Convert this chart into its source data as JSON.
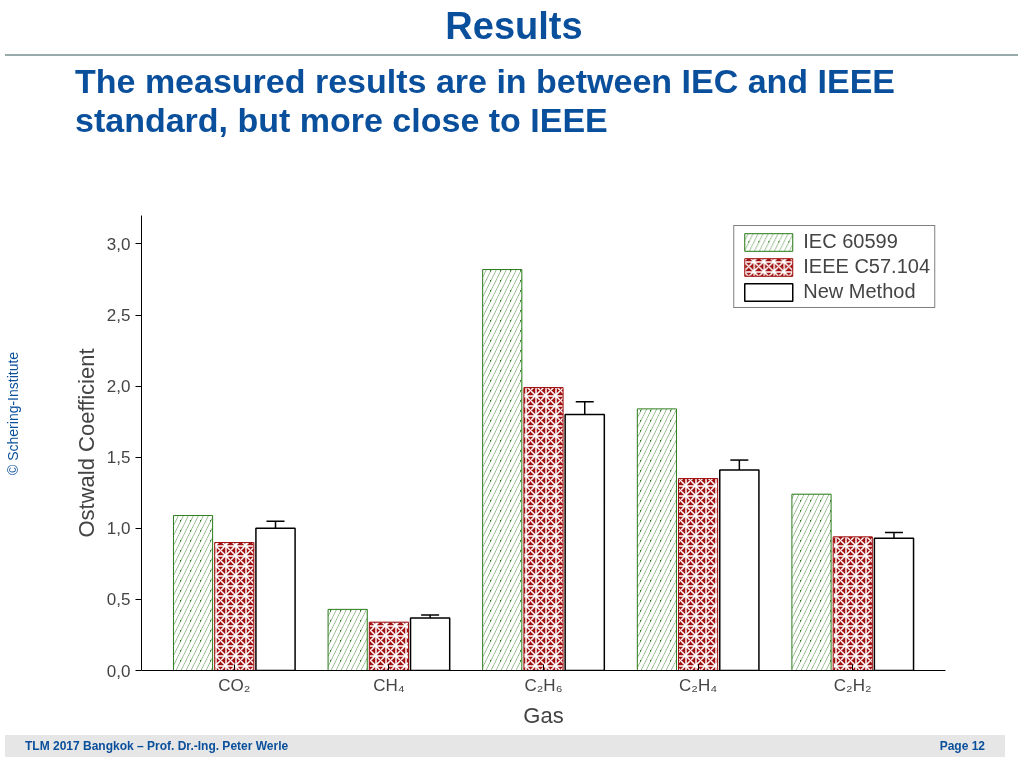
{
  "chart_data": {
    "type": "bar",
    "title": "Results",
    "subtitle": "The measured results are in between IEC and IEEE standard, but more close to IEEE",
    "xlabel": "Gas",
    "ylabel": "Ostwald Coefficient",
    "categories": [
      "CO₂",
      "CH₄",
      "C₂H₆",
      "C₂H₄",
      "C₂H₂"
    ],
    "series": [
      {
        "name": "IEC 60599",
        "color": "#2e7d1e",
        "values": [
          1.09,
          0.43,
          2.82,
          1.84,
          1.24
        ]
      },
      {
        "name": "IEEE C57.104",
        "color": "#a01010",
        "values": [
          0.9,
          0.34,
          1.99,
          1.35,
          0.94
        ]
      },
      {
        "name": "New Method",
        "color": "#ffffff",
        "values": [
          1.0,
          0.37,
          1.8,
          1.41,
          0.93
        ],
        "errors": [
          0.05,
          0.02,
          0.09,
          0.07,
          0.04
        ]
      }
    ],
    "ylim": [
      0,
      3.2
    ],
    "yticks": [
      {
        "value": 0,
        "label": "0,0"
      },
      {
        "value": 0.5,
        "label": "0,5"
      },
      {
        "value": 1,
        "label": "1,0"
      },
      {
        "value": 1.5,
        "label": "1,5"
      },
      {
        "value": 2,
        "label": "2,0"
      },
      {
        "value": 2.5,
        "label": "2,5"
      },
      {
        "value": 3,
        "label": "3,0"
      }
    ],
    "grid": false,
    "legend": "top right",
    "annotations": [
      "© Schering-Institute",
      "TLM 2017 Bangkok – Prof. Dr.-Ing. Peter Werle",
      "Page 12"
    ]
  }
}
